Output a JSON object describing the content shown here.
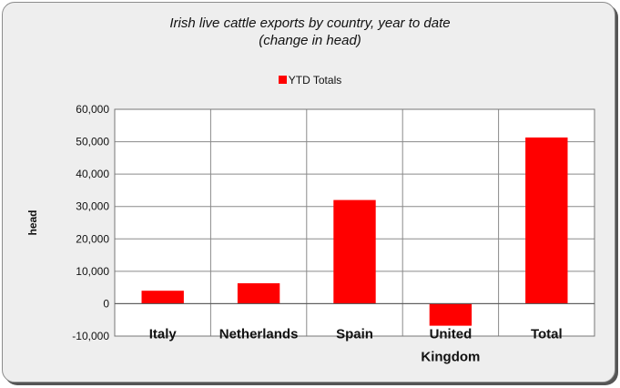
{
  "chart_data": {
    "type": "bar",
    "title": "Irish live cattle exports by country, year to date",
    "subtitle": "(change in head)",
    "xlabel": "",
    "ylabel": "head",
    "categories": [
      "Italy",
      "Netherlands",
      "Spain",
      "United Kingdom",
      "Total"
    ],
    "category_lines": [
      [
        "Italy"
      ],
      [
        "Netherlands"
      ],
      [
        "Spain"
      ],
      [
        "United",
        "Kingdom"
      ],
      [
        "Total"
      ]
    ],
    "series": [
      {
        "name": "YTD Totals",
        "color": "#ff0000",
        "values": [
          4000,
          6300,
          32000,
          -6800,
          51300
        ]
      }
    ],
    "ylim": [
      -10000,
      60000
    ],
    "yticks": [
      -10000,
      0,
      10000,
      20000,
      30000,
      40000,
      50000,
      60000
    ],
    "ytick_labels": [
      "-10,000",
      "0",
      "10,000",
      "20,000",
      "30,000",
      "40,000",
      "50,000",
      "60,000"
    ],
    "legend_position": "top-center",
    "grid": true
  }
}
